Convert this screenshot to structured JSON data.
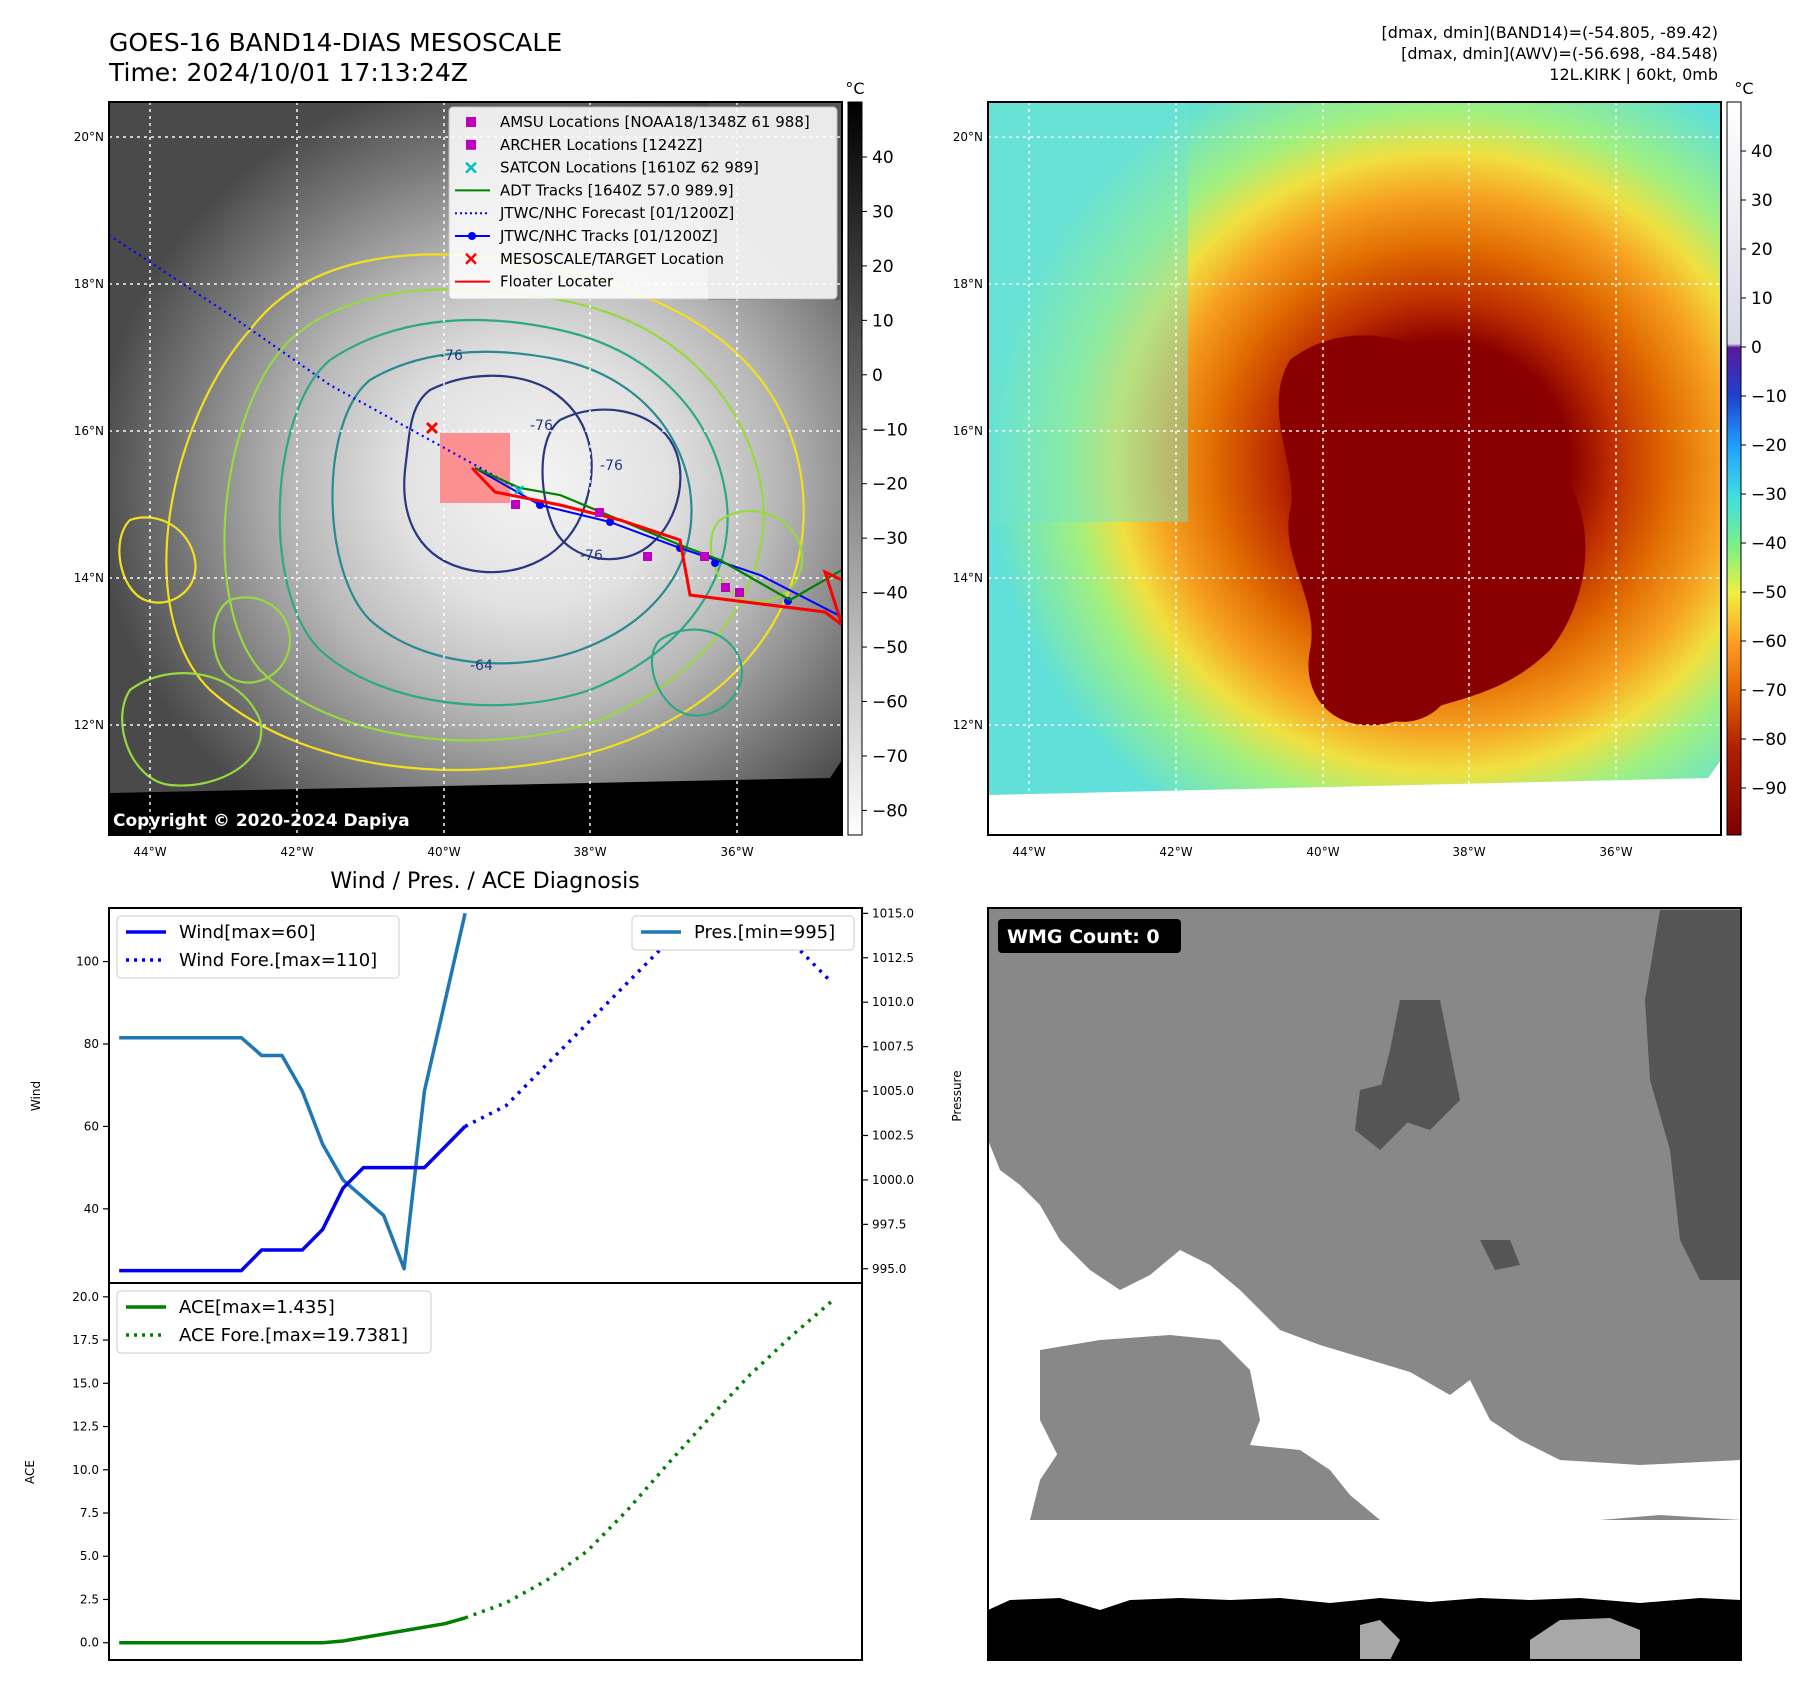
{
  "header": {
    "title_line1": "GOES-16 BAND14-DIAS MESOSCALE",
    "title_line2": "Time: 2024/10/01 17:13:24Z",
    "info_line1": "[dmax, dmin](BAND14)=(-54.805, -89.42)",
    "info_line2": "[dmax, dmin](AWV)=(-56.698, -84.548)",
    "info_line3": "12L.KIRK | 60kt, 0mb"
  },
  "map_left": {
    "lat_labels": [
      "20°N",
      "18°N",
      "16°N",
      "14°N",
      "12°N"
    ],
    "lon_labels": [
      "44°W",
      "42°W",
      "40°W",
      "38°W",
      "36°W"
    ],
    "copyright": "Copyright © 2020-2024 Dapiya",
    "contour_labels": [
      "-76",
      "-76",
      "-76",
      "-76",
      "-64"
    ],
    "colorbar": {
      "unit": "°C",
      "ticks": [
        "40",
        "30",
        "20",
        "10",
        "0",
        "−10",
        "−20",
        "−30",
        "−40",
        "−50",
        "−60",
        "−70",
        "−80"
      ]
    },
    "legend": [
      {
        "label": "AMSU Locations [NOAA18/1348Z 61 988]",
        "color": "#c000c0",
        "marker": "square"
      },
      {
        "label": "ARCHER Locations [1242Z]",
        "color": "#c000c0",
        "marker": "square"
      },
      {
        "label": "SATCON Locations [1610Z 62 989]",
        "color": "#00bfbf",
        "marker": "x"
      },
      {
        "label": "ADT Tracks [1640Z 57.0 989.9]",
        "color": "#008000",
        "marker": "line"
      },
      {
        "label": "JTWC/NHC Forecast [01/1200Z]",
        "color": "#0000ff",
        "marker": "dotted"
      },
      {
        "label": "JTWC/NHC Tracks [01/1200Z]",
        "color": "#0000ff",
        "marker": "line-dot"
      },
      {
        "label": "MESOSCALE/TARGET Location",
        "color": "#ff0000",
        "marker": "x"
      },
      {
        "label": "Floater Locater",
        "color": "#ff0000",
        "marker": "line"
      }
    ]
  },
  "map_right": {
    "lat_labels": [
      "20°N",
      "18°N",
      "16°N",
      "14°N",
      "12°N"
    ],
    "lon_labels": [
      "44°W",
      "42°W",
      "40°W",
      "38°W",
      "36°W"
    ],
    "colorbar": {
      "unit": "°C",
      "ticks": [
        "40",
        "30",
        "20",
        "10",
        "0",
        "−10",
        "−20",
        "−30",
        "−40",
        "−50",
        "−60",
        "−70",
        "−80",
        "−90"
      ]
    }
  },
  "wmg_panel": {
    "label": "WMG Count: 0"
  },
  "chart_data": [
    {
      "type": "line",
      "title": "Wind / Pres. / ACE Diagnosis",
      "ylabel": "Wind",
      "ylim": [
        22,
        113
      ],
      "yticks": [
        40,
        60,
        80,
        100
      ],
      "x_index_range": [
        0,
        36
      ],
      "series": [
        {
          "name": "Wind[max=60]",
          "style": "solid",
          "color": "#0000ee",
          "x": [
            0,
            1,
            2,
            3,
            4,
            5,
            6,
            7,
            8,
            9,
            10,
            11,
            12,
            13,
            14,
            15,
            16,
            17
          ],
          "values": [
            25,
            25,
            25,
            25,
            25,
            25,
            25,
            30,
            30,
            30,
            35,
            45,
            50,
            50,
            50,
            50,
            55,
            60
          ]
        },
        {
          "name": "Wind Fore.[max=110]",
          "style": "dotted",
          "color": "#0000ee",
          "x": [
            17,
            19,
            21,
            23,
            25,
            27,
            29,
            31,
            33,
            35
          ],
          "values": [
            60,
            65,
            75,
            85,
            95,
            105,
            110,
            110,
            105,
            95
          ]
        }
      ]
    },
    {
      "type": "line",
      "ylabel": "Pressure",
      "ylim": [
        994.2,
        1015.3
      ],
      "yticks": [
        "995.0",
        "997.5",
        "1000.0",
        "1002.5",
        "1005.0",
        "1007.5",
        "1010.0",
        "1012.5",
        "1015.0"
      ],
      "series": [
        {
          "name": "Pres.[min=995]",
          "style": "solid",
          "color": "#1f77b4",
          "x": [
            0,
            1,
            2,
            3,
            4,
            5,
            6,
            7,
            8,
            9,
            10,
            11,
            12,
            13,
            14,
            15,
            16,
            17
          ],
          "values": [
            1008,
            1008,
            1008,
            1008,
            1008,
            1008,
            1008,
            1007,
            1007,
            1005,
            1002,
            1000,
            999,
            998,
            995,
            1005,
            1010,
            1015
          ]
        }
      ]
    },
    {
      "type": "line",
      "ylabel": "ACE",
      "ylim": [
        -1,
        20.8
      ],
      "yticks": [
        "0.0",
        "2.5",
        "5.0",
        "7.5",
        "10.0",
        "12.5",
        "15.0",
        "17.5",
        "20.0"
      ],
      "series": [
        {
          "name": "ACE[max=1.435]",
          "style": "solid",
          "color": "#008000",
          "x": [
            0,
            2,
            4,
            6,
            8,
            10,
            11,
            12,
            14,
            16,
            17
          ],
          "values": [
            0,
            0,
            0,
            0,
            0,
            0,
            0.1,
            0.3,
            0.7,
            1.1,
            1.435
          ]
        },
        {
          "name": "ACE Fore.[max=19.7381]",
          "style": "dotted",
          "color": "#008000",
          "x": [
            17,
            19,
            21,
            23,
            25,
            27,
            29,
            31,
            33,
            35
          ],
          "values": [
            1.435,
            2.3,
            3.6,
            5.3,
            7.7,
            10.4,
            13.0,
            15.5,
            17.7,
            19.7381
          ]
        }
      ]
    }
  ]
}
